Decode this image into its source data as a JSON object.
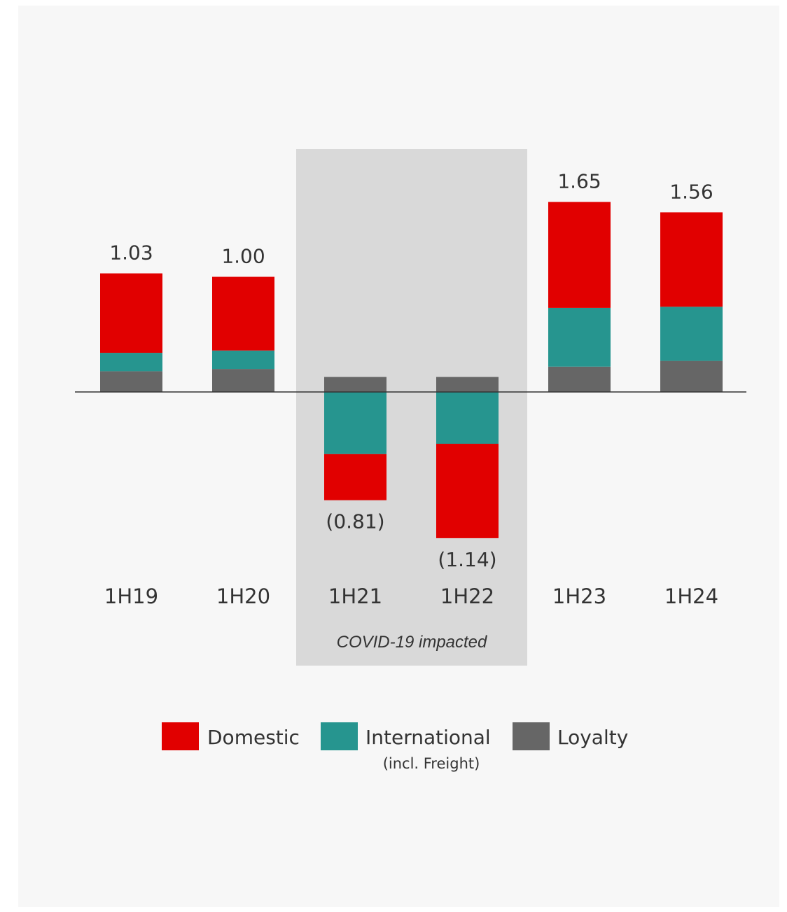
{
  "chart_data": {
    "type": "bar",
    "stacked": true,
    "categories": [
      "1H19",
      "1H20",
      "1H21",
      "1H22",
      "1H23",
      "1H24"
    ],
    "totals": [
      1.03,
      1.0,
      -0.81,
      -1.14,
      1.65,
      1.56
    ],
    "total_labels": [
      "1.03",
      "1.00",
      "(0.81)",
      "(1.14)",
      "1.65",
      "1.56"
    ],
    "series": [
      {
        "name": "Loyalty",
        "color": "#666666",
        "values": [
          0.18,
          0.2,
          0.13,
          0.13,
          0.22,
          0.27
        ]
      },
      {
        "name": "International",
        "sublabel": "(incl. Freight)",
        "color": "#26958f",
        "values": [
          0.16,
          0.16,
          -0.54,
          -0.45,
          0.51,
          0.47
        ]
      },
      {
        "name": "Domestic",
        "color": "#e10000",
        "values": [
          0.69,
          0.64,
          -0.4,
          -0.82,
          0.92,
          0.82
        ]
      }
    ],
    "shaded_region": {
      "label": "COVID-19 impacted",
      "categories": [
        "1H21",
        "1H22"
      ]
    },
    "legend": {
      "position": "bottom",
      "items": [
        {
          "name": "Domestic",
          "color": "#e10000"
        },
        {
          "name": "International",
          "sublabel": "(incl. Freight)",
          "color": "#26958f"
        },
        {
          "name": "Loyalty",
          "color": "#666666"
        }
      ]
    },
    "title": "",
    "xlabel": "",
    "ylabel": "",
    "grid": false
  }
}
